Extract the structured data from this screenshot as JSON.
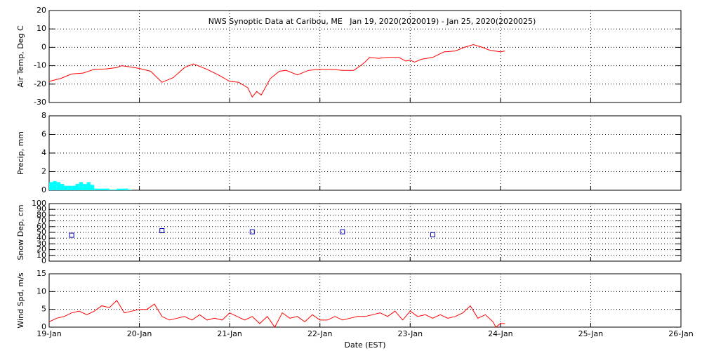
{
  "chart_data": [
    {
      "type": "line",
      "title": "NWS Synoptic Data at Caribou, ME   Jan 19, 2020(2020019) - Jan 25, 2020(2020025)",
      "ylabel": "Air Temp, Deg C",
      "color": "#ff0000",
      "grid": true,
      "ylim": [
        -30,
        20
      ],
      "yticks": [
        -30,
        -20,
        -10,
        0,
        10,
        20
      ],
      "x": [
        0,
        0.125,
        0.25,
        0.375,
        0.5,
        0.625,
        0.75,
        0.8,
        0.875,
        1.0,
        1.125,
        1.25,
        1.375,
        1.5,
        1.6,
        1.75,
        1.875,
        2.0,
        2.1,
        2.2,
        2.25,
        2.3,
        2.35,
        2.45,
        2.55,
        2.625,
        2.75,
        2.875,
        3.0,
        3.125,
        3.25,
        3.375,
        3.45,
        3.5,
        3.55,
        3.65,
        3.75,
        3.875,
        3.95,
        4.0,
        4.05,
        4.125,
        4.25,
        4.375,
        4.5,
        4.6,
        4.7,
        4.8,
        4.875,
        5.0,
        5.05
      ],
      "values": [
        -18.5,
        -17,
        -14.5,
        -14,
        -12,
        -11.8,
        -11,
        -10,
        -10.5,
        -11.5,
        -13,
        -19,
        -16.5,
        -11,
        -9,
        -12,
        -15,
        -18.5,
        -19,
        -22,
        -27,
        -24,
        -26,
        -17,
        -13,
        -12.5,
        -15,
        -12.5,
        -12,
        -12,
        -12.5,
        -12.5,
        -10,
        -8,
        -5.5,
        -6,
        -5.5,
        -5.5,
        -7.5,
        -7,
        -8,
        -6.5,
        -5.5,
        -2.5,
        -2,
        0,
        1.5,
        0,
        -1.5,
        -2.5,
        -2
      ]
    },
    {
      "type": "histogram",
      "ylabel": "Precip, mm",
      "color": "#00ffff",
      "grid": true,
      "ylim": [
        0,
        8
      ],
      "yticks": [
        0,
        2,
        4,
        6,
        8
      ],
      "bins": [
        0,
        0.0417,
        0.0833,
        0.125,
        0.1667,
        0.2083,
        0.25,
        0.2917,
        0.3333,
        0.375,
        0.4167,
        0.4583,
        0.5,
        0.5417,
        0.5833,
        0.625,
        0.6667,
        0.7083,
        0.75,
        0.7917,
        0.8333,
        0.875,
        0.9167
      ],
      "values": [
        0.8,
        0.9,
        0.8,
        0.6,
        0.4,
        0.4,
        0.4,
        0.6,
        0.8,
        0.6,
        0.8,
        0.5,
        0.1,
        0.1,
        0.1,
        0.1,
        0,
        0,
        0.1,
        0.1,
        0.1,
        0
      ]
    },
    {
      "type": "scatter",
      "ylabel": "Snow Dep, cm",
      "color": "#0000aa",
      "grid": true,
      "ylim": [
        0,
        100
      ],
      "yticks": [
        0,
        10,
        20,
        30,
        40,
        50,
        60,
        70,
        80,
        90,
        100
      ],
      "x": [
        0.25,
        1.25,
        2.25,
        3.25,
        4.25
      ],
      "values": [
        45,
        53,
        51,
        51,
        46
      ]
    },
    {
      "type": "line",
      "ylabel": "Wind Spd, m/s",
      "xlabel": "Date (EST)",
      "color": "#ff0000",
      "grid": true,
      "ylim": [
        0,
        15
      ],
      "yticks": [
        0,
        5,
        10,
        15
      ],
      "xlim": [
        0,
        7
      ],
      "xticks": [
        {
          "value": 0,
          "label": "19-Jan"
        },
        {
          "value": 1,
          "label": "20-Jan"
        },
        {
          "value": 2,
          "label": "21-Jan"
        },
        {
          "value": 3,
          "label": "22-Jan"
        },
        {
          "value": 4,
          "label": "23-Jan"
        },
        {
          "value": 5,
          "label": "24-Jan"
        },
        {
          "value": 6,
          "label": "25-Jan"
        },
        {
          "value": 7,
          "label": "26-Jan"
        }
      ],
      "x": [
        0,
        0.083,
        0.167,
        0.25,
        0.333,
        0.417,
        0.5,
        0.583,
        0.667,
        0.75,
        0.833,
        0.917,
        1.0,
        1.083,
        1.167,
        1.25,
        1.333,
        1.417,
        1.5,
        1.583,
        1.667,
        1.75,
        1.833,
        1.917,
        2.0,
        2.083,
        2.167,
        2.25,
        2.333,
        2.417,
        2.5,
        2.583,
        2.667,
        2.75,
        2.833,
        2.917,
        3.0,
        3.083,
        3.167,
        3.25,
        3.333,
        3.417,
        3.5,
        3.583,
        3.667,
        3.75,
        3.833,
        3.917,
        4.0,
        4.083,
        4.167,
        4.25,
        4.333,
        4.417,
        4.5,
        4.583,
        4.667,
        4.75,
        4.833,
        4.917,
        4.95,
        5.0,
        5.05
      ],
      "values": [
        1.5,
        2.5,
        3,
        4,
        4.5,
        3.5,
        4.5,
        6,
        5.5,
        7.5,
        4,
        4.5,
        5,
        5,
        6.5,
        3,
        2,
        2.5,
        3,
        2,
        3.5,
        2,
        2.5,
        2,
        4,
        3,
        2,
        3,
        1,
        3,
        0,
        4,
        2.5,
        3,
        1.5,
        3.5,
        2,
        2,
        3,
        2,
        2.5,
        3,
        3,
        3.5,
        4,
        3,
        4.5,
        2,
        4.5,
        3,
        3.5,
        2.5,
        3.5,
        2.5,
        3,
        4,
        6,
        2.5,
        3.5,
        1.5,
        0,
        1,
        1
      ]
    }
  ]
}
